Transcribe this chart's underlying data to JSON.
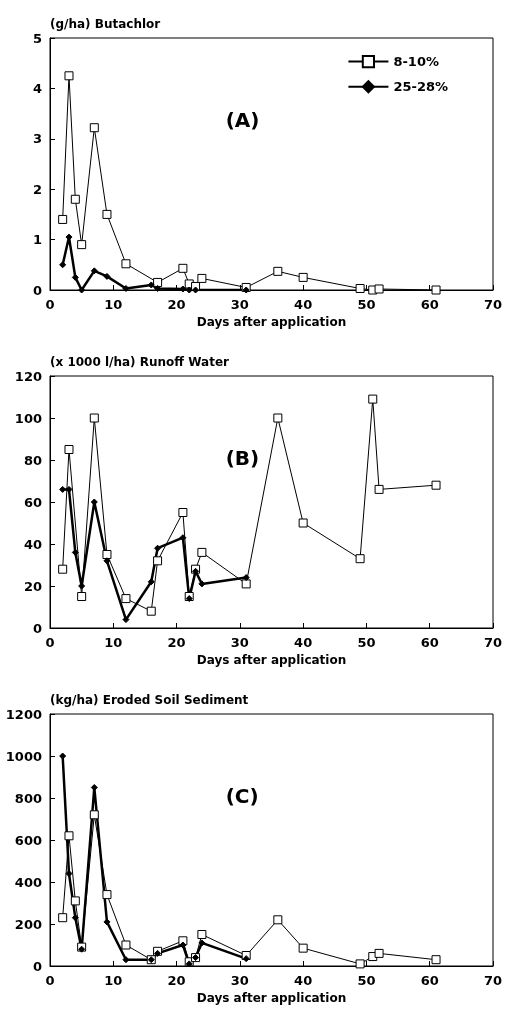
{
  "chart_data": [
    {
      "type": "line",
      "ylabel": "(g/ha) Butachlor",
      "xlabel": "Days after application",
      "annotations": [
        "(A)"
      ],
      "xlim": [
        0,
        70
      ],
      "xticks": [
        0,
        10,
        20,
        30,
        40,
        50,
        60,
        70
      ],
      "ylim": [
        0,
        5
      ],
      "yticks": [
        0,
        1,
        2,
        3,
        4,
        5
      ],
      "grid": false,
      "legend": "top right",
      "series": [
        {
          "name": "8-10%",
          "color": "#000000",
          "marker": "square",
          "x": [
            2,
            3,
            4,
            5,
            7,
            9,
            12,
            17,
            21,
            22,
            23,
            24,
            31,
            36,
            40,
            49,
            51,
            52,
            61
          ],
          "values": [
            1.4,
            4.25,
            1.8,
            0.9,
            3.22,
            1.5,
            0.52,
            0.15,
            0.43,
            0.12,
            0.07,
            0.23,
            0.05,
            0.37,
            0.25,
            0.03,
            0,
            0.02,
            0
          ]
        },
        {
          "name": "25-28%",
          "color": "#000000",
          "marker": "diamond",
          "x": [
            2,
            3,
            4,
            5,
            7,
            9,
            12,
            16,
            17,
            21,
            22,
            23,
            31
          ],
          "values": [
            0.5,
            1.05,
            0.25,
            0,
            0.38,
            0.27,
            0.03,
            0.1,
            0.03,
            0.02,
            0,
            0,
            0
          ]
        }
      ]
    },
    {
      "type": "line",
      "ylabel": "(x 1000 l/ha) Runoff Water",
      "xlabel": "Days after application",
      "annotations": [
        "(B)"
      ],
      "xlim": [
        0,
        70
      ],
      "xticks": [
        0,
        10,
        20,
        30,
        40,
        50,
        60,
        70
      ],
      "ylim": [
        0,
        120
      ],
      "yticks": [
        0,
        20,
        40,
        60,
        80,
        100,
        120
      ],
      "grid": false,
      "legend": false,
      "series": [
        {
          "color": "#000000",
          "marker": "square",
          "x": [
            2,
            3,
            5,
            7,
            9,
            12,
            16,
            17,
            21,
            22,
            23,
            24,
            31,
            36,
            40,
            49,
            51,
            52,
            61
          ],
          "values": [
            28,
            85,
            15,
            100,
            35,
            14,
            8,
            32,
            55,
            15,
            28,
            36,
            21,
            100,
            50,
            33,
            109,
            66,
            68
          ]
        },
        {
          "color": "#000000",
          "marker": "diamond",
          "x": [
            2,
            3,
            4,
            5,
            7,
            9,
            12,
            16,
            17,
            21,
            22,
            23,
            24,
            31
          ],
          "values": [
            66,
            66,
            36,
            20,
            60,
            32,
            4,
            22,
            38,
            43,
            14,
            27,
            21,
            24
          ]
        }
      ]
    },
    {
      "type": "line",
      "ylabel": "(kg/ha) Eroded Soil Sediment",
      "xlabel": "Days after application",
      "annotations": [
        "(C)"
      ],
      "xlim": [
        0,
        70
      ],
      "xticks": [
        0,
        10,
        20,
        30,
        40,
        50,
        60,
        70
      ],
      "ylim": [
        0,
        1200
      ],
      "yticks": [
        0,
        200,
        400,
        600,
        800,
        1000,
        1200
      ],
      "grid": false,
      "legend": false,
      "series": [
        {
          "color": "#000000",
          "marker": "square",
          "x": [
            2,
            3,
            4,
            5,
            7,
            9,
            12,
            16,
            17,
            21,
            22,
            23,
            24,
            31,
            36,
            40,
            49,
            51,
            52,
            61
          ],
          "values": [
            230,
            620,
            310,
            90,
            720,
            340,
            100,
            30,
            70,
            120,
            20,
            40,
            150,
            50,
            220,
            85,
            10,
            45,
            60,
            30
          ]
        },
        {
          "color": "#000000",
          "marker": "diamond",
          "x": [
            2,
            3,
            4,
            5,
            7,
            9,
            12,
            16,
            17,
            21,
            22,
            23,
            24,
            31
          ],
          "values": [
            1000,
            440,
            230,
            80,
            850,
            210,
            30,
            30,
            60,
            100,
            10,
            40,
            110,
            35
          ]
        }
      ]
    }
  ]
}
